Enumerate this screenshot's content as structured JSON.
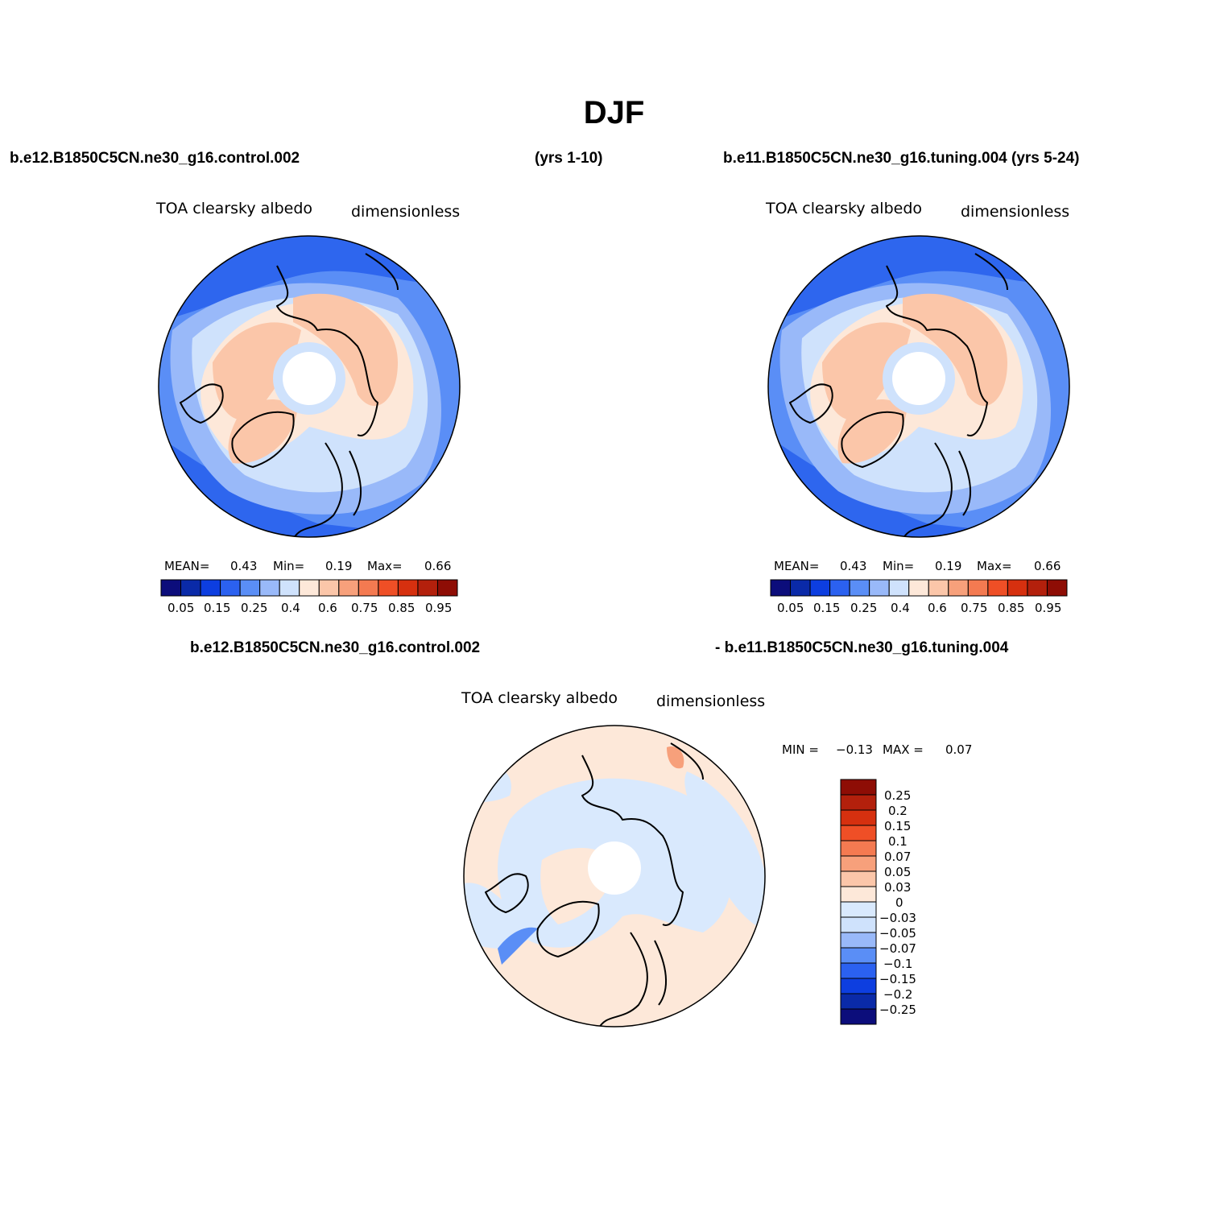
{
  "title": "DJF",
  "header": {
    "left_case": "b.e12.B1850C5CN.ne30_g16.control.002",
    "left_years": "(yrs 1-10)",
    "right_case": "b.e11.B1850C5CN.ne30_g16.tuning.004 (yrs 5-24)"
  },
  "panels": [
    {
      "variable": "TOA clearsky albedo",
      "units": "dimensionless",
      "stats": {
        "mean_label": "MEAN=",
        "mean": "0.43",
        "min_label": "Min=",
        "min": "0.19",
        "max_label": "Max=",
        "max": "0.66"
      }
    },
    {
      "variable": "TOA clearsky albedo",
      "units": "dimensionless",
      "stats": {
        "mean_label": "MEAN=",
        "mean": "0.43",
        "min_label": "Min=",
        "min": "0.19",
        "max_label": "Max=",
        "max": "0.66"
      }
    }
  ],
  "diff_header": {
    "left": "b.e12.B1850C5CN.ne30_g16.control.002",
    "right": "- b.e11.B1850C5CN.ne30_g16.tuning.004"
  },
  "diff_panel": {
    "variable": "TOA clearsky albedo",
    "units": "dimensionless",
    "stats": {
      "min_label": "MIN =",
      "min": "−0.13",
      "max_label": "MAX =",
      "max": "0.07"
    }
  },
  "colorbar_abs": {
    "colors": [
      "#0c0d7b",
      "#0a2aa8",
      "#0d3ee0",
      "#2b61f0",
      "#5a8ef6",
      "#99b9f9",
      "#cfe2fc",
      "#fde8d9",
      "#fbc6a9",
      "#f7a07b",
      "#f47a51",
      "#ef4f26",
      "#d6300f",
      "#b3200c",
      "#8e0d05"
    ],
    "tick_labels": [
      "0.05",
      "0.15",
      "0.25",
      "0.4",
      "0.6",
      "0.75",
      "0.85",
      "0.95"
    ]
  },
  "colorbar_diff": {
    "colors": [
      "#0c0d7b",
      "#0a2aa8",
      "#0d3ee0",
      "#2b61f0",
      "#5a8ef6",
      "#99b9f9",
      "#cfe2fc",
      "#d9e9fd",
      "#fde8d9",
      "#fbc6a9",
      "#f7a07b",
      "#f47a51",
      "#ef4f26",
      "#d6300f",
      "#b3200c",
      "#8e0d05"
    ],
    "tick_labels": [
      "0.25",
      "0.2",
      "0.15",
      "0.1",
      "0.07",
      "0.05",
      "0.03",
      "0",
      "−0.03",
      "−0.05",
      "−0.07",
      "−0.1",
      "−0.15",
      "−0.2",
      "−0.25"
    ]
  },
  "map_colors": {
    "deep_ocean": "#2e66ee",
    "ocean": "#5a8ef6",
    "pale_blue": "#99b9f9",
    "very_pale_blue": "#cfe2fc",
    "peach": "#fde8d9",
    "salmon": "#fbc6a9",
    "diff_neg": "#d9e9fd",
    "diff_pos": "#fde8d9",
    "diff_strong_pos": "#f7a07b",
    "diff_strong_neg": "#5a8ef6"
  }
}
